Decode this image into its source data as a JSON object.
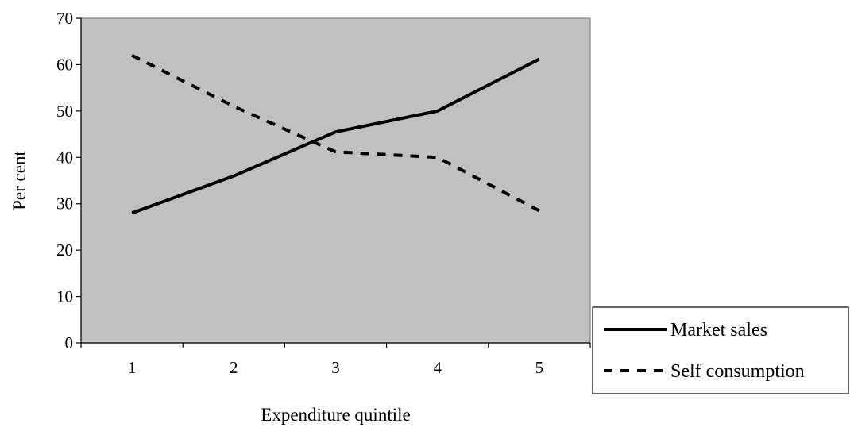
{
  "chart_data": {
    "type": "line",
    "title": "",
    "xlabel": "Expenditure quintile",
    "ylabel": "Per cent",
    "categories": [
      "1",
      "2",
      "3",
      "4",
      "5"
    ],
    "ylim": [
      0,
      70
    ],
    "yticks": [
      "0",
      "10",
      "20",
      "30",
      "40",
      "50",
      "60",
      "70"
    ],
    "grid": false,
    "legend": "bottom-right, outside plot",
    "series": [
      {
        "name": "Market sales",
        "values": [
          28,
          36,
          45.5,
          50,
          61.2
        ],
        "style": "solid",
        "color": "#000000"
      },
      {
        "name": "Self consumption",
        "values": [
          62,
          51,
          41.2,
          40,
          28.5
        ],
        "style": "dashed",
        "color": "#000000"
      }
    ],
    "colors": {
      "plot_background": "#c0c0c0",
      "axis": "#808080"
    }
  }
}
